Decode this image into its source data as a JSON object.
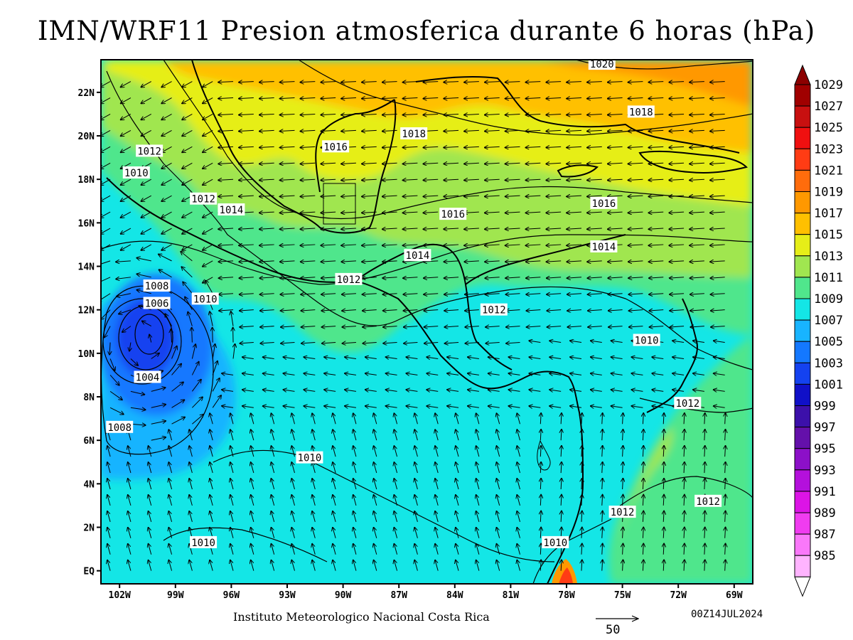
{
  "title": "IMN/WRF11 Presion atmosferica durante 6 horas (hPa)",
  "footer": "Instituto Meteorologico Nacional Costa Rica",
  "datestamp": "00Z14JUL2024",
  "vector_reference": {
    "label": "50",
    "arrow-icon": "right-arrow-icon"
  },
  "map": {
    "lon_range": [
      -103,
      -68
    ],
    "lat_range": [
      -0.6,
      23.5
    ],
    "lon_ticks": [
      {
        "value": -102,
        "label": "102W"
      },
      {
        "value": -99,
        "label": "99W"
      },
      {
        "value": -96,
        "label": "96W"
      },
      {
        "value": -93,
        "label": "93W"
      },
      {
        "value": -90,
        "label": "90W"
      },
      {
        "value": -87,
        "label": "87W"
      },
      {
        "value": -84,
        "label": "84W"
      },
      {
        "value": -81,
        "label": "81W"
      },
      {
        "value": -78,
        "label": "78W"
      },
      {
        "value": -75,
        "label": "75W"
      },
      {
        "value": -72,
        "label": "72W"
      },
      {
        "value": -69,
        "label": "69W"
      }
    ],
    "lat_ticks": [
      {
        "value": 22,
        "label": "22N"
      },
      {
        "value": 20,
        "label": "20N"
      },
      {
        "value": 18,
        "label": "18N"
      },
      {
        "value": 16,
        "label": "16N"
      },
      {
        "value": 14,
        "label": "14N"
      },
      {
        "value": 12,
        "label": "12N"
      },
      {
        "value": 10,
        "label": "10N"
      },
      {
        "value": 8,
        "label": "8N"
      },
      {
        "value": 6,
        "label": "6N"
      },
      {
        "value": 4,
        "label": "4N"
      },
      {
        "value": 2,
        "label": "2N"
      },
      {
        "value": 0,
        "label": "EQ"
      }
    ],
    "low_center": {
      "lon": -100.3,
      "lat": 10.4,
      "value": 1004
    },
    "contour_labels": [
      {
        "text": "1020",
        "lon": -76.1,
        "lat": 23.3
      },
      {
        "text": "1018",
        "lon": -86.2,
        "lat": 20.1
      },
      {
        "text": "1018",
        "lon": -74.0,
        "lat": 21.1
      },
      {
        "text": "1016",
        "lon": -90.4,
        "lat": 19.5
      },
      {
        "text": "1016",
        "lon": -84.1,
        "lat": 16.4
      },
      {
        "text": "1016",
        "lon": -76.0,
        "lat": 16.9
      },
      {
        "text": "1014",
        "lon": -96.0,
        "lat": 16.6
      },
      {
        "text": "1014",
        "lon": -86.0,
        "lat": 14.5
      },
      {
        "text": "1014",
        "lon": -76.0,
        "lat": 14.9
      },
      {
        "text": "1012",
        "lon": -100.4,
        "lat": 19.3
      },
      {
        "text": "1012",
        "lon": -97.5,
        "lat": 17.1
      },
      {
        "text": "1012",
        "lon": -89.7,
        "lat": 13.4
      },
      {
        "text": "1012",
        "lon": -81.9,
        "lat": 12.0
      },
      {
        "text": "1012",
        "lon": -71.5,
        "lat": 7.7
      },
      {
        "text": "1012",
        "lon": -75.0,
        "lat": 2.7
      },
      {
        "text": "1012",
        "lon": -70.4,
        "lat": 3.2
      },
      {
        "text": "1010",
        "lon": -101.1,
        "lat": 18.3
      },
      {
        "text": "1010",
        "lon": -97.4,
        "lat": 12.5
      },
      {
        "text": "1010",
        "lon": -73.7,
        "lat": 10.6
      },
      {
        "text": "1010",
        "lon": -91.8,
        "lat": 5.2
      },
      {
        "text": "1010",
        "lon": -97.5,
        "lat": 1.3
      },
      {
        "text": "1010",
        "lon": -78.6,
        "lat": 1.3
      },
      {
        "text": "1008",
        "lon": -100.0,
        "lat": 13.1
      },
      {
        "text": "1008",
        "lon": -102.0,
        "lat": 6.6
      },
      {
        "text": "1006",
        "lon": -100.0,
        "lat": 12.3
      },
      {
        "text": "1004",
        "lon": -100.5,
        "lat": 8.9
      }
    ]
  },
  "colorbar": {
    "levels": [
      {
        "label": "1029",
        "color": "#a00000"
      },
      {
        "label": "1027",
        "color": "#c81010"
      },
      {
        "label": "1025",
        "color": "#f01010"
      },
      {
        "label": "1023",
        "color": "#ff3c14"
      },
      {
        "label": "1021",
        "color": "#ff6c0c"
      },
      {
        "label": "1019",
        "color": "#ff9800"
      },
      {
        "label": "1017",
        "color": "#ffc000"
      },
      {
        "label": "1015",
        "color": "#e6ee18"
      },
      {
        "label": "1013",
        "color": "#a0e650"
      },
      {
        "label": "1011",
        "color": "#50e68c"
      },
      {
        "label": "1009",
        "color": "#14e6e6"
      },
      {
        "label": "1007",
        "color": "#18b4ff"
      },
      {
        "label": "1005",
        "color": "#1478ff"
      },
      {
        "label": "1003",
        "color": "#1442f0"
      },
      {
        "label": "1001",
        "color": "#1010c8"
      },
      {
        "label": "999",
        "color": "#3c10aa"
      },
      {
        "label": "997",
        "color": "#6410aa"
      },
      {
        "label": "995",
        "color": "#8c10c8"
      },
      {
        "label": "993",
        "color": "#b410dc"
      },
      {
        "label": "991",
        "color": "#dc14e6"
      },
      {
        "label": "989",
        "color": "#f03cf0"
      },
      {
        "label": "987",
        "color": "#fa78fa"
      },
      {
        "label": "985",
        "color": "#ffb4ff"
      }
    ],
    "top_arrow_color": "#8c0000",
    "bottom_arrow_color": "#ffffff"
  }
}
